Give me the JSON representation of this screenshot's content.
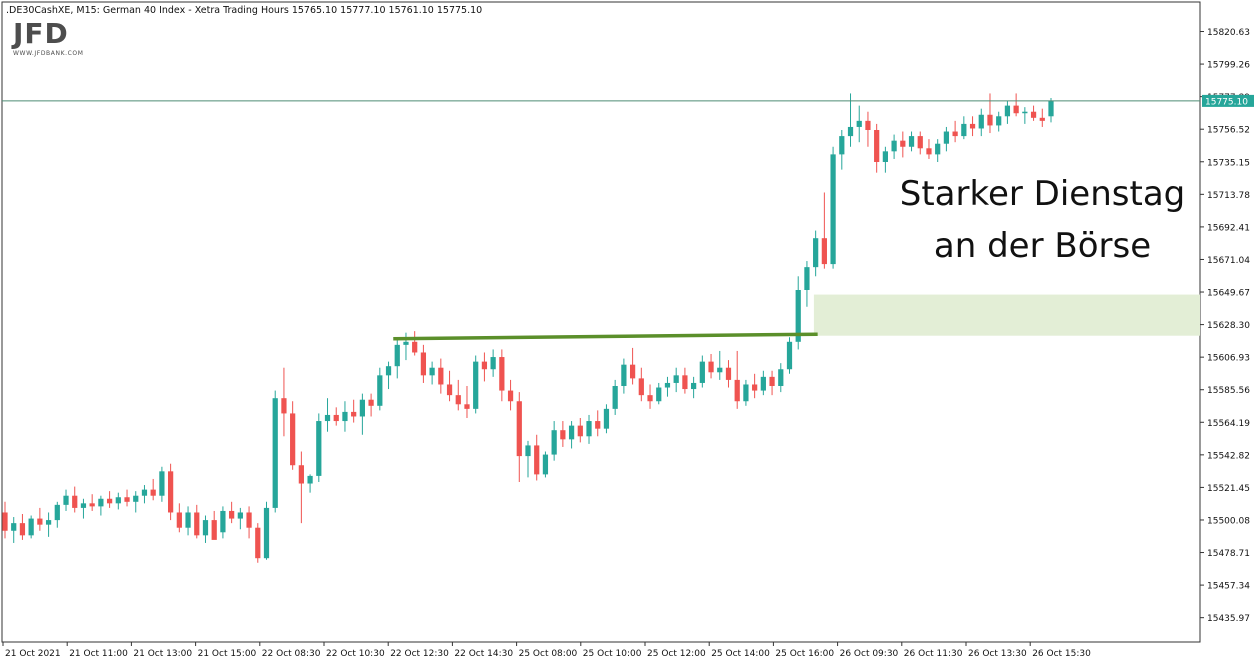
{
  "header": {
    "symbol": ".DE30CashXE, M15:  German 40 Index  - Xetra Trading Hours  15765.10 15777.10 15761.10 15775.10"
  },
  "logo": {
    "text": "JFD",
    "subtext": "WWW.JFDBANK.COM"
  },
  "annotation": {
    "line1": "Starker Dienstag",
    "line2": "an der Börse"
  },
  "colors": {
    "bull": "#26a69a",
    "bear": "#ef5350",
    "resistance_line": "#5b8f2a",
    "zone": "#e3eed6",
    "price_line": "#4e8c74",
    "price_label_bg": "#26a69a",
    "axis": "#333333"
  },
  "chart_data": {
    "type": "candlestick",
    "ylim": [
      15420,
      15840
    ],
    "y_ticks": [
      "15820.63",
      "15799.26",
      "15777.89",
      "15756.52",
      "15735.15",
      "15713.78",
      "15692.41",
      "15671.04",
      "15649.67",
      "15628.30",
      "15606.93",
      "15585.56",
      "15564.19",
      "15542.82",
      "15521.45",
      "15500.08",
      "15478.71",
      "15457.34",
      "15435.97"
    ],
    "x_ticks": [
      "21 Oct 2021",
      "21 Oct 11:00",
      "21 Oct 13:00",
      "21 Oct 15:00",
      "22 Oct 08:30",
      "22 Oct 10:30",
      "22 Oct 12:30",
      "22 Oct 14:30",
      "25 Oct 08:00",
      "25 Oct 10:00",
      "25 Oct 12:00",
      "25 Oct 14:00",
      "25 Oct 16:00",
      "26 Oct 09:30",
      "26 Oct 11:30",
      "26 Oct 13:30",
      "26 Oct 15:30"
    ],
    "candles": [
      [
        15505,
        15512,
        15488,
        15493
      ],
      [
        15493,
        15502,
        15485,
        15498
      ],
      [
        15498,
        15504,
        15487,
        15490
      ],
      [
        15490,
        15503,
        15488,
        15501
      ],
      [
        15501,
        15508,
        15493,
        15497
      ],
      [
        15497,
        15505,
        15489,
        15500
      ],
      [
        15500,
        15512,
        15495,
        15510
      ],
      [
        15510,
        15520,
        15506,
        15516
      ],
      [
        15516,
        15522,
        15505,
        15508
      ],
      [
        15508,
        15514,
        15501,
        15511
      ],
      [
        15511,
        15517,
        15506,
        15509
      ],
      [
        15509,
        15516,
        15503,
        15514
      ],
      [
        15514,
        15519,
        15508,
        15511
      ],
      [
        15511,
        15518,
        15507,
        15515
      ],
      [
        15515,
        15520,
        15509,
        15512
      ],
      [
        15512,
        15519,
        15505,
        15516
      ],
      [
        15516,
        15523,
        15511,
        15520
      ],
      [
        15520,
        15527,
        15513,
        15516
      ],
      [
        15516,
        15535,
        15512,
        15532
      ],
      [
        15532,
        15537,
        15500,
        15505
      ],
      [
        15505,
        15511,
        15492,
        15495
      ],
      [
        15495,
        15509,
        15490,
        15505
      ],
      [
        15505,
        15510,
        15488,
        15490
      ],
      [
        15490,
        15503,
        15485,
        15500
      ],
      [
        15500,
        15506,
        15490,
        15487
      ],
      [
        15492,
        15509,
        15488,
        15506
      ],
      [
        15506,
        15512,
        15498,
        15501
      ],
      [
        15501,
        15508,
        15494,
        15505
      ],
      [
        15505,
        15509,
        15488,
        15495
      ],
      [
        15495,
        15498,
        15472,
        15475
      ],
      [
        15475,
        15512,
        15474,
        15508
      ],
      [
        15508,
        15585,
        15505,
        15580
      ],
      [
        15580,
        15600,
        15555,
        15570
      ],
      [
        15570,
        15578,
        15533,
        15536
      ],
      [
        15536,
        15545,
        15498,
        15524
      ],
      [
        15524,
        15530,
        15518,
        15529
      ],
      [
        15529,
        15570,
        15525,
        15565
      ],
      [
        15565,
        15580,
        15558,
        15569
      ],
      [
        15569,
        15574,
        15562,
        15565
      ],
      [
        15565,
        15578,
        15558,
        15571
      ],
      [
        15571,
        15579,
        15564,
        15568
      ],
      [
        15568,
        15583,
        15556,
        15579
      ],
      [
        15579,
        15583,
        15568,
        15575
      ],
      [
        15575,
        15600,
        15572,
        15595
      ],
      [
        15595,
        15604,
        15586,
        15601
      ],
      [
        15601,
        15619,
        15593,
        15615
      ],
      [
        15615,
        15623,
        15605,
        15617
      ],
      [
        15617,
        15624,
        15608,
        15610
      ],
      [
        15610,
        15615,
        15590,
        15595
      ],
      [
        15595,
        15604,
        15589,
        15600
      ],
      [
        15600,
        15606,
        15583,
        15589
      ],
      [
        15589,
        15598,
        15578,
        15582
      ],
      [
        15582,
        15592,
        15572,
        15576
      ],
      [
        15576,
        15588,
        15567,
        15573
      ],
      [
        15573,
        15608,
        15570,
        15604
      ],
      [
        15604,
        15610,
        15591,
        15599
      ],
      [
        15599,
        15612,
        15594,
        15607
      ],
      [
        15607,
        15612,
        15578,
        15585
      ],
      [
        15585,
        15592,
        15572,
        15578
      ],
      [
        15578,
        15584,
        15525,
        15542
      ],
      [
        15542,
        15552,
        15528,
        15549
      ],
      [
        15549,
        15556,
        15526,
        15530
      ],
      [
        15530,
        15545,
        15528,
        15543
      ],
      [
        15543,
        15565,
        15539,
        15559
      ],
      [
        15559,
        15565,
        15548,
        15553
      ],
      [
        15553,
        15565,
        15547,
        15562
      ],
      [
        15562,
        15567,
        15551,
        15555
      ],
      [
        15555,
        15569,
        15550,
        15565
      ],
      [
        15565,
        15572,
        15555,
        15560
      ],
      [
        15560,
        15576,
        15557,
        15573
      ],
      [
        15573,
        15592,
        15569,
        15588
      ],
      [
        15588,
        15606,
        15583,
        15602
      ],
      [
        15602,
        15613,
        15589,
        15593
      ],
      [
        15593,
        15600,
        15578,
        15582
      ],
      [
        15582,
        15589,
        15573,
        15578
      ],
      [
        15578,
        15590,
        15576,
        15587
      ],
      [
        15587,
        15594,
        15581,
        15590
      ],
      [
        15590,
        15600,
        15584,
        15595
      ],
      [
        15595,
        15600,
        15583,
        15586
      ],
      [
        15586,
        15594,
        15580,
        15590
      ],
      [
        15590,
        15608,
        15587,
        15604
      ],
      [
        15604,
        15609,
        15593,
        15597
      ],
      [
        15597,
        15611,
        15592,
        15600
      ],
      [
        15600,
        15605,
        15587,
        15592
      ],
      [
        15592,
        15611,
        15573,
        15578
      ],
      [
        15578,
        15592,
        15575,
        15589
      ],
      [
        15589,
        15596,
        15580,
        15585
      ],
      [
        15585,
        15598,
        15582,
        15594
      ],
      [
        15594,
        15598,
        15582,
        15588
      ],
      [
        15588,
        15603,
        15584,
        15599
      ],
      [
        15599,
        15620,
        15596,
        15617
      ],
      [
        15617,
        15660,
        15612,
        15651
      ],
      [
        15651,
        15670,
        15640,
        15666
      ],
      [
        15666,
        15690,
        15660,
        15685
      ],
      [
        15685,
        15715,
        15665,
        15668
      ],
      [
        15668,
        15745,
        15665,
        15740
      ],
      [
        15740,
        15756,
        15730,
        15752
      ],
      [
        15752,
        15780,
        15745,
        15758
      ],
      [
        15758,
        15772,
        15748,
        15762
      ],
      [
        15762,
        15768,
        15745,
        15756
      ],
      [
        15756,
        15760,
        15728,
        15735
      ],
      [
        15735,
        15745,
        15728,
        15742
      ],
      [
        15742,
        15753,
        15737,
        15749
      ],
      [
        15749,
        15755,
        15738,
        15745
      ],
      [
        15745,
        15755,
        15742,
        15752
      ],
      [
        15752,
        15755,
        15740,
        15744
      ],
      [
        15744,
        15750,
        15737,
        15740
      ],
      [
        15740,
        15750,
        15735,
        15747
      ],
      [
        15747,
        15758,
        15742,
        15755
      ],
      [
        15755,
        15762,
        15748,
        15752
      ],
      [
        15752,
        15765,
        15750,
        15760
      ],
      [
        15760,
        15765,
        15752,
        15757
      ],
      [
        15757,
        15770,
        15752,
        15766
      ],
      [
        15766,
        15780,
        15754,
        15759
      ],
      [
        15759,
        15768,
        15755,
        15765
      ],
      [
        15765,
        15775,
        15760,
        15772
      ],
      [
        15772,
        15780,
        15765,
        15767
      ],
      [
        15767,
        15771,
        15760,
        15768
      ],
      [
        15768,
        15772,
        15762,
        15764
      ],
      [
        15764,
        15770,
        15758,
        15762
      ],
      [
        15765,
        15777,
        15761,
        15775
      ]
    ],
    "last_price": "15775.10",
    "resistance_line": {
      "from_price": 15619,
      "to_price": 15622
    },
    "gap_zone": {
      "low": 15621,
      "high": 15648
    }
  }
}
